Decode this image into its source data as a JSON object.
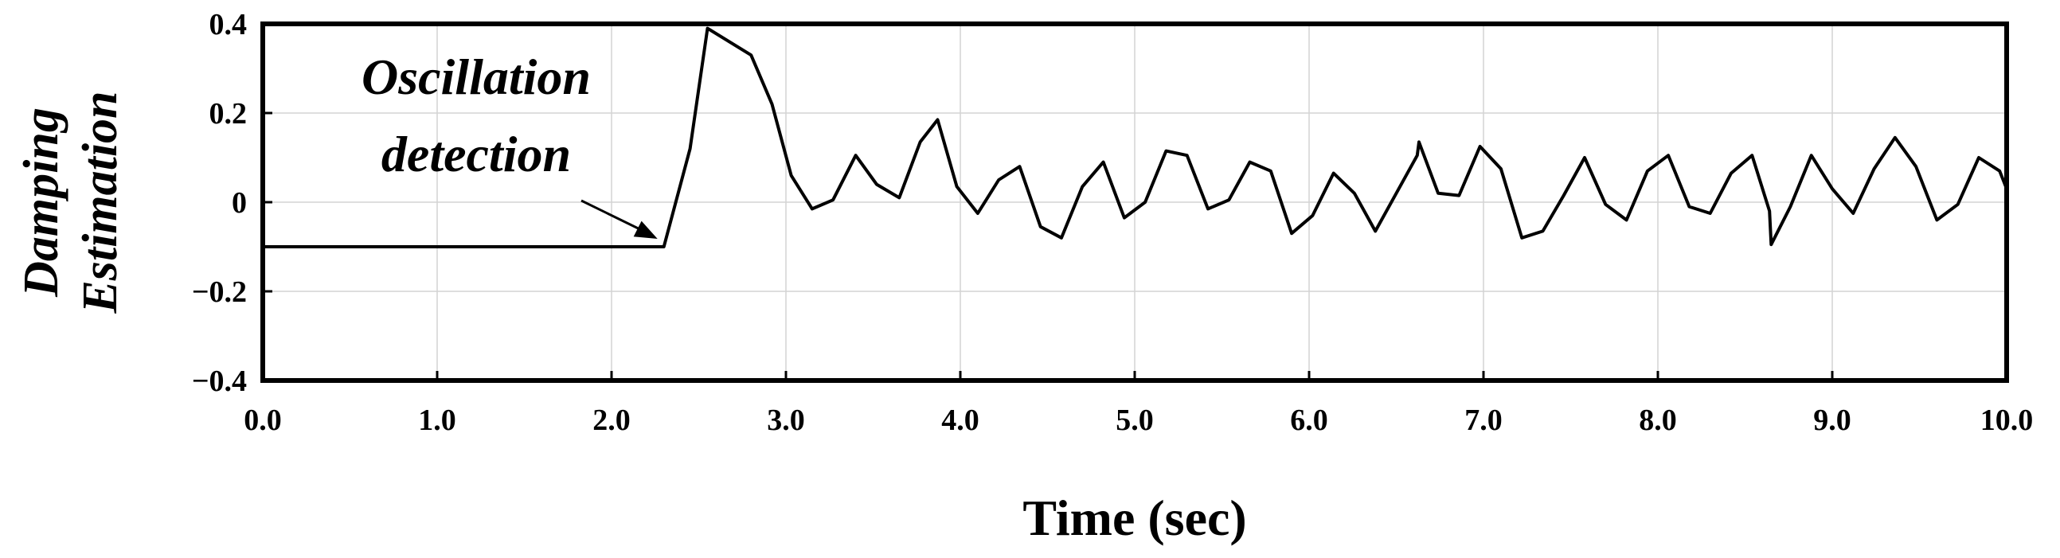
{
  "chart_data": {
    "type": "line",
    "title": "",
    "xlabel": "Time (sec)",
    "ylabel_lines": [
      "Damping",
      "Estimation"
    ],
    "xlim": [
      0,
      10
    ],
    "ylim": [
      -0.4,
      0.4
    ],
    "grid": true,
    "x_ticks": [
      0,
      1,
      2,
      3,
      4,
      5,
      6,
      7,
      8,
      9,
      10
    ],
    "x_tick_labels": [
      "0.0",
      "1.0",
      "2.0",
      "3.0",
      "4.0",
      "5.0",
      "6.0",
      "7.0",
      "8.0",
      "9.0",
      "10.0"
    ],
    "y_ticks": [
      0.4,
      0.2,
      0,
      -0.2,
      -0.4
    ],
    "y_tick_labels": [
      "0.4",
      "0.2",
      "0",
      "−0.2",
      "−0.4"
    ],
    "annotation": {
      "lines": [
        "Oscillation",
        "detection"
      ],
      "points_to": [
        2.3,
        -0.1
      ]
    },
    "series": [
      {
        "color": "#000000",
        "x": [
          0,
          2.3,
          2.45,
          2.55,
          2.8,
          2.92,
          3.03,
          3.15,
          3.27,
          3.4,
          3.52,
          3.65,
          3.77,
          3.87,
          3.98,
          4.1,
          4.22,
          4.34,
          4.46,
          4.58,
          4.7,
          4.82,
          4.94,
          5.06,
          5.18,
          5.3,
          5.42,
          5.54,
          5.66,
          5.78,
          5.9,
          6.02,
          6.14,
          6.26,
          6.38,
          6.5,
          6.62,
          6.63,
          6.74,
          6.86,
          6.98,
          7.1,
          7.22,
          7.34,
          7.46,
          7.58,
          7.7,
          7.82,
          7.94,
          8.06,
          8.18,
          8.3,
          8.42,
          8.54,
          8.64,
          8.65,
          8.76,
          8.88,
          9.0,
          9.12,
          9.24,
          9.36,
          9.48,
          9.6,
          9.72,
          9.84,
          9.96,
          10.0
        ],
        "values": [
          -0.1,
          -0.1,
          0.12,
          0.39,
          0.33,
          0.22,
          0.06,
          -0.015,
          0.005,
          0.105,
          0.04,
          0.01,
          0.135,
          0.185,
          0.035,
          -0.025,
          0.05,
          0.08,
          -0.055,
          -0.08,
          0.035,
          0.09,
          -0.035,
          0.0,
          0.115,
          0.105,
          -0.015,
          0.005,
          0.09,
          0.07,
          -0.07,
          -0.03,
          0.065,
          0.02,
          -0.065,
          0.02,
          0.105,
          0.135,
          0.02,
          0.015,
          0.125,
          0.075,
          -0.08,
          -0.065,
          0.015,
          0.1,
          -0.005,
          -0.04,
          0.07,
          0.105,
          -0.01,
          -0.025,
          0.065,
          0.105,
          -0.02,
          -0.095,
          -0.01,
          0.105,
          0.03,
          -0.025,
          0.075,
          0.145,
          0.08,
          -0.04,
          -0.005,
          0.1,
          0.07,
          0.03
        ]
      }
    ]
  }
}
